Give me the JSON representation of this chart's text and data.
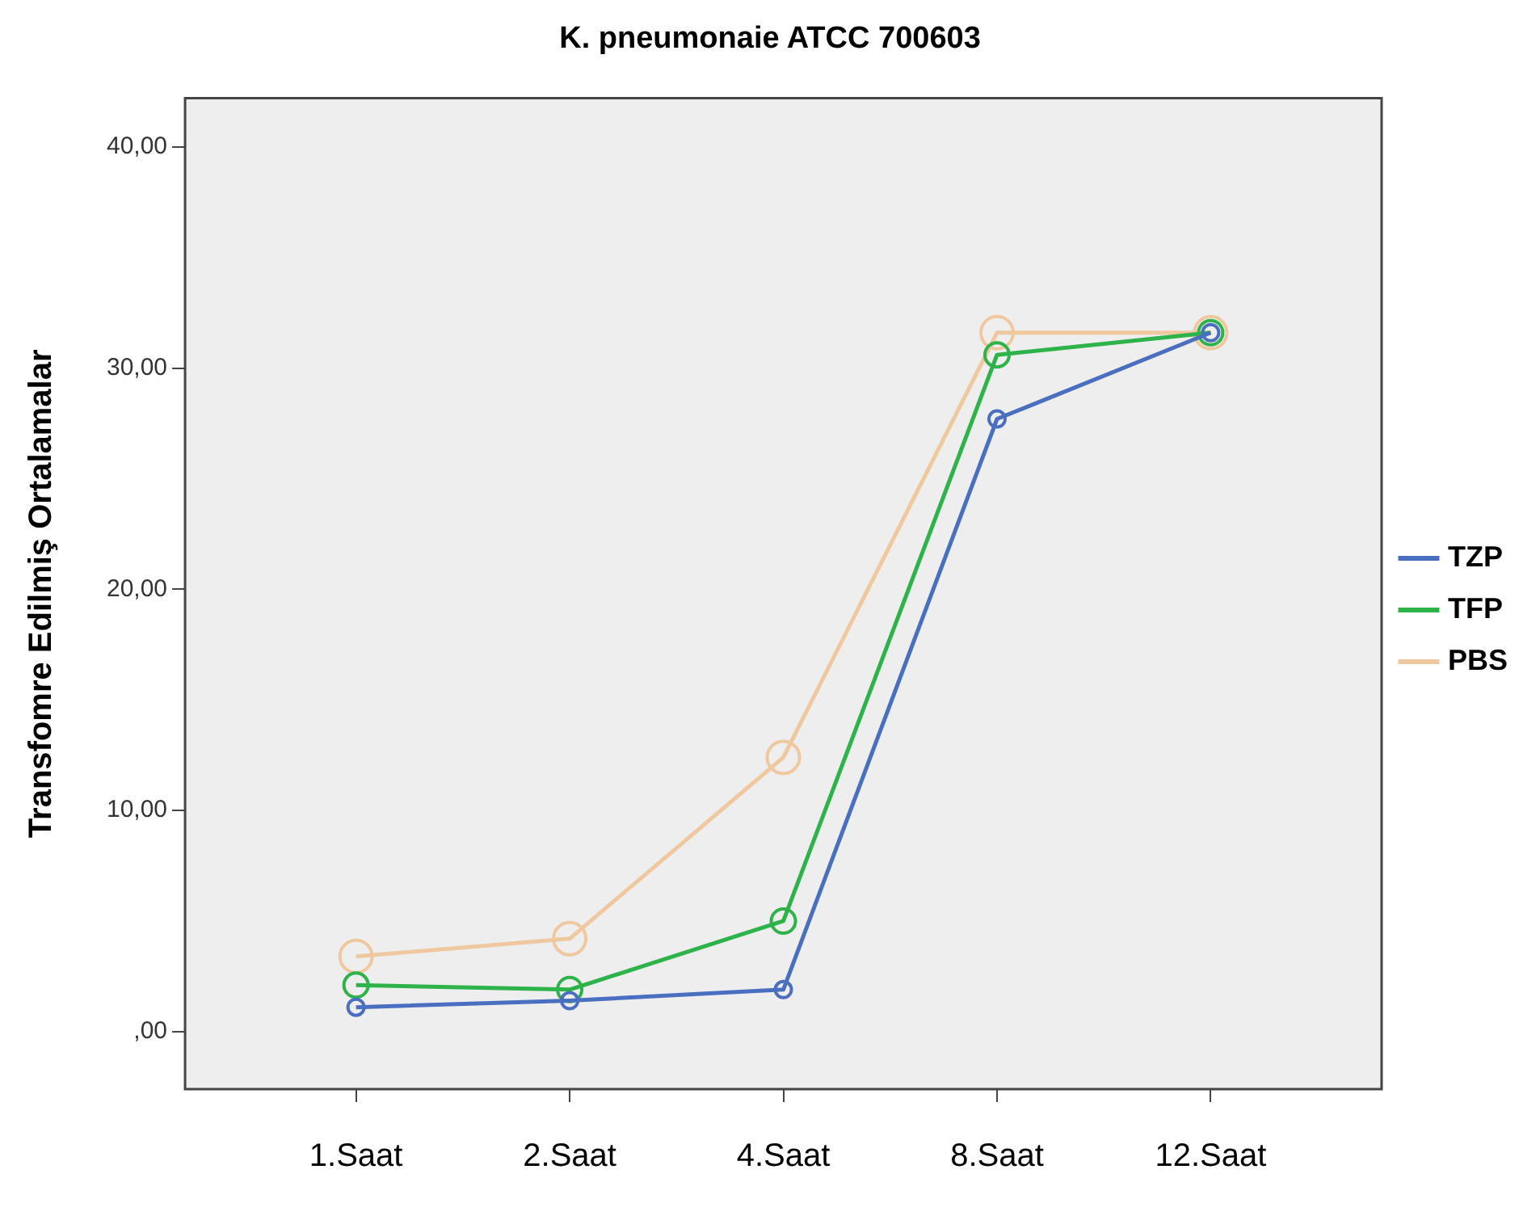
{
  "chart_data": {
    "type": "line",
    "title": "K. pneumonaie ATCC 700603",
    "ylabel": "Transfomre Edilmiş Ortalamalar",
    "categories": [
      "1.Saat",
      "2.Saat",
      "4.Saat",
      "8.Saat",
      "12.Saat"
    ],
    "series": [
      {
        "name": "TZP",
        "color": "#4a6fc0",
        "values": [
          1.1,
          1.4,
          1.9,
          27.7,
          31.6
        ]
      },
      {
        "name": "TFP",
        "color": "#2db34a",
        "values": [
          2.1,
          1.9,
          5.0,
          30.6,
          31.6
        ]
      },
      {
        "name": "PBS",
        "color": "#f0c8a0",
        "values": [
          3.4,
          4.2,
          12.4,
          31.6,
          31.6
        ]
      }
    ],
    "ylim": [
      -2.6,
      42.2
    ],
    "yticks": [
      {
        "value": 0,
        "label": ",00"
      },
      {
        "value": 10,
        "label": "10,00"
      },
      {
        "value": 20,
        "label": "20,00"
      },
      {
        "value": 30,
        "label": "30,00"
      },
      {
        "value": 40,
        "label": "40,00"
      }
    ],
    "grid": false,
    "legend": "right",
    "marker": "circle",
    "line_style": "solid"
  }
}
